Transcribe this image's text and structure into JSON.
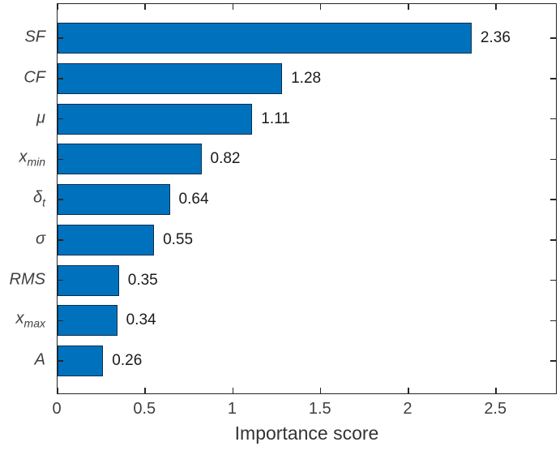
{
  "chart_data": {
    "type": "bar",
    "orientation": "horizontal",
    "title": "",
    "xlabel": "Importance score",
    "ylabel": "",
    "categories": [
      {
        "base": "SF",
        "sub": ""
      },
      {
        "base": "CF",
        "sub": ""
      },
      {
        "base": "μ",
        "sub": ""
      },
      {
        "base": "x",
        "sub": "min"
      },
      {
        "base": "δ",
        "sub": "t"
      },
      {
        "base": "σ",
        "sub": ""
      },
      {
        "base": "RMS",
        "sub": ""
      },
      {
        "base": "x",
        "sub": "max"
      },
      {
        "base": "A",
        "sub": ""
      }
    ],
    "values": [
      2.36,
      1.28,
      1.11,
      0.82,
      0.64,
      0.55,
      0.35,
      0.34,
      0.26
    ],
    "value_labels": [
      "2.36",
      "1.28",
      "1.11",
      "0.82",
      "0.64",
      "0.55",
      "0.35",
      "0.34",
      "0.26"
    ],
    "xlim": [
      0,
      2.85
    ],
    "xticks": [
      0,
      0.5,
      1,
      1.5,
      2,
      2.5
    ],
    "xtick_labels": [
      "0",
      "0.5",
      "1",
      "1.5",
      "2",
      "2.5"
    ],
    "grid": false,
    "legend": null,
    "colors": {
      "bar_fill": "#0072BD",
      "bar_edge": "#0c2d4d",
      "axis": "#262626",
      "tick_label": "#404040",
      "value_label": "#1a1a1a"
    }
  }
}
